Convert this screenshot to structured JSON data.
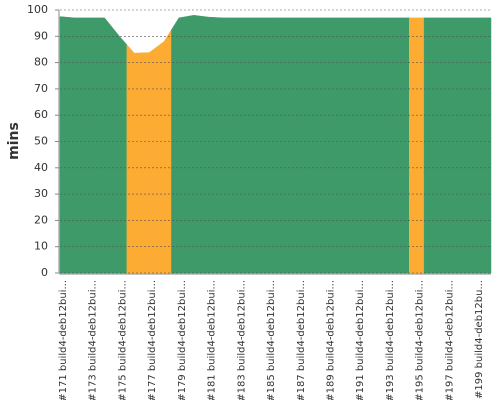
{
  "chart_data": {
    "type": "area",
    "y_label": "mins",
    "categories": [
      "#171 build4-deb12bui...",
      null,
      "#173 build4-deb12bui...",
      null,
      "#175 build4-deb12bui...",
      null,
      "#177 build4-deb12bui...",
      null,
      "#179 build4-deb12bui...",
      null,
      "#181 build4-deb12bui...",
      null,
      "#183 build4-deb12bui...",
      null,
      "#185 build4-deb12bui...",
      null,
      "#187 build4-deb12bui...",
      null,
      "#189 build4-deb12bui...",
      null,
      "#191 build4-deb12bui...",
      null,
      "#193 build4-deb12bui...",
      null,
      "#195 build4-deb12bui...",
      null,
      "#197 build4-deb12bui...",
      null,
      "#199 build4-deb12bu...",
      null
    ],
    "values": [
      97.5,
      97,
      97,
      97,
      90,
      83.6,
      83.8,
      88,
      97,
      98,
      97.3,
      97,
      97,
      97,
      97,
      97,
      97,
      97,
      97,
      97,
      97,
      97,
      97,
      97,
      97,
      97,
      97,
      97,
      97,
      97
    ],
    "colors": [
      "#3f9a6a",
      "#3f9a6a",
      "#3f9a6a",
      "#3f9a6a",
      "#3f9a6a",
      "#fcac33",
      "#fcac33",
      "#fcac33",
      "#3f9a6a",
      "#3f9a6a",
      "#3f9a6a",
      "#3f9a6a",
      "#3f9a6a",
      "#3f9a6a",
      "#3f9a6a",
      "#3f9a6a",
      "#3f9a6a",
      "#3f9a6a",
      "#3f9a6a",
      "#3f9a6a",
      "#3f9a6a",
      "#3f9a6a",
      "#3f9a6a",
      "#3f9a6a",
      "#fcac33",
      "#3f9a6a",
      "#3f9a6a",
      "#3f9a6a",
      "#3f9a6a",
      "#3f9a6a"
    ],
    "ylim": [
      0,
      100
    ],
    "yticks": [
      0,
      10,
      20,
      30,
      40,
      50,
      60,
      70,
      80,
      90,
      100
    ],
    "grid": true
  }
}
